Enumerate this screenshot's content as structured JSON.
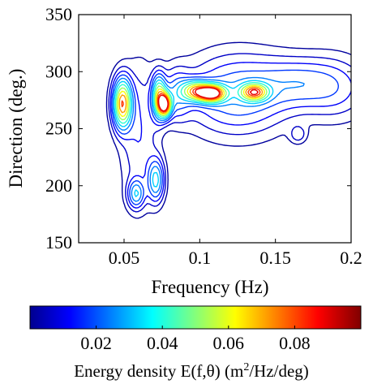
{
  "chart_data": {
    "type": "contour",
    "xlabel": "Frequency (Hz)",
    "ylabel": "Direction (deg.)",
    "xlim": [
      0.02,
      0.2
    ],
    "ylim": [
      150,
      350
    ],
    "xticks": [
      "0.05",
      "0.1",
      "0.15",
      "0.2"
    ],
    "xtick_values": [
      0.05,
      0.1,
      0.15,
      0.2
    ],
    "yticks": [
      "150",
      "200",
      "250",
      "300",
      "350"
    ],
    "ytick_values": [
      150,
      200,
      250,
      300,
      350
    ],
    "grid": false,
    "colorbar": {
      "label_prefix": "Energy density E(f,θ) (m",
      "label_sup": "2",
      "label_suffix": "/Hz/deg)",
      "range": [
        0,
        0.1
      ],
      "ticks": [
        "0.02",
        "0.04",
        "0.06",
        "0.08"
      ],
      "tick_values": [
        0.02,
        0.04,
        0.06,
        0.08
      ],
      "colormap": "jet",
      "placement": "bottom"
    },
    "peaks": [
      {
        "f": 0.049,
        "dir": 272,
        "E": 0.08
      },
      {
        "f": 0.058,
        "dir": 193,
        "E": 0.03
      },
      {
        "f": 0.071,
        "dir": 205,
        "E": 0.035
      },
      {
        "f": 0.073,
        "dir": 278,
        "E": 0.06
      },
      {
        "f": 0.077,
        "dir": 271,
        "E": 0.09
      },
      {
        "f": 0.105,
        "dir": 282,
        "E": 0.095
      },
      {
        "f": 0.136,
        "dir": 282,
        "E": 0.07
      },
      {
        "f": 0.165,
        "dir": 245,
        "E": 0.01
      }
    ]
  }
}
